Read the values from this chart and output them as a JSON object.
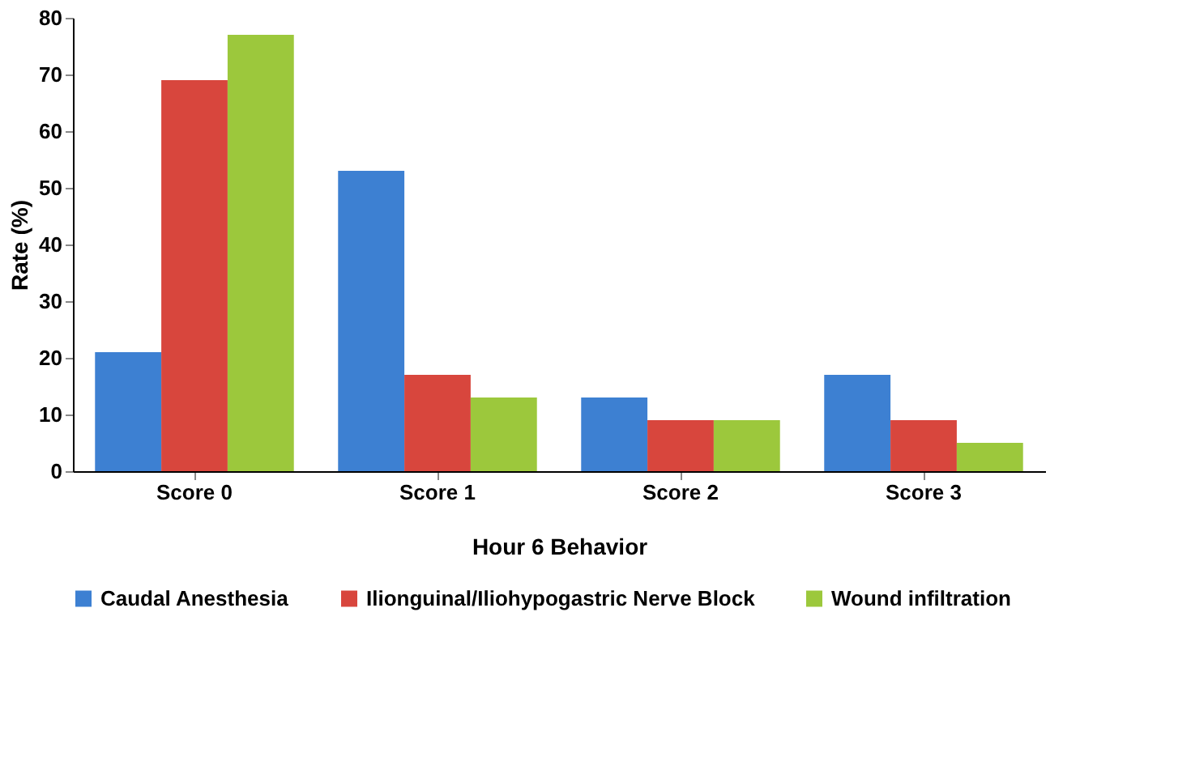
{
  "chart_data": {
    "type": "bar",
    "xlabel": "Hour 6 Behavior",
    "ylabel": "Rate (%)",
    "categories": [
      "Score 0",
      "Score 1",
      "Score 2",
      "Score 3"
    ],
    "series": [
      {
        "name": "Caudal Anesthesia",
        "color": "#3d80d2",
        "values": [
          21,
          53,
          13,
          17
        ]
      },
      {
        "name": "Ilionguinal/Iliohypogastric Nerve Block",
        "color": "#d8463d",
        "values": [
          69,
          17,
          9,
          9
        ]
      },
      {
        "name": "Wound infiltration",
        "color": "#9cc83c",
        "values": [
          77,
          13,
          9,
          5
        ]
      }
    ],
    "ylim": [
      0,
      80
    ],
    "yticks": [
      0,
      10,
      20,
      30,
      40,
      50,
      60,
      70,
      80
    ],
    "grid": false,
    "legend": "bottom"
  }
}
